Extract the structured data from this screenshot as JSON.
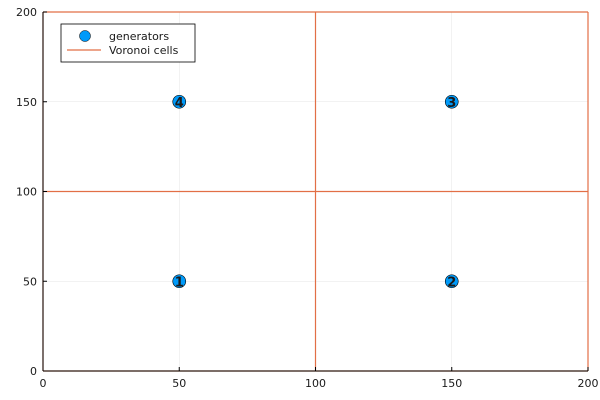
{
  "chart_data": {
    "type": "scatter",
    "title": "",
    "xlabel": "",
    "ylabel": "",
    "xlim": [
      0,
      200
    ],
    "ylim": [
      0,
      200
    ],
    "xticks": [
      0,
      50,
      100,
      150,
      200
    ],
    "yticks": [
      0,
      50,
      100,
      150,
      200
    ],
    "grid": true,
    "legend_position": "top-left",
    "series": [
      {
        "name": "generators",
        "kind": "scatter",
        "color": "#009af9",
        "points": [
          {
            "x": 50,
            "y": 50,
            "label": "1"
          },
          {
            "x": 150,
            "y": 50,
            "label": "2"
          },
          {
            "x": 150,
            "y": 150,
            "label": "3"
          },
          {
            "x": 50,
            "y": 150,
            "label": "4"
          }
        ]
      },
      {
        "name": "Voronoi cells",
        "kind": "line",
        "color": "#e26f46",
        "segments": [
          [
            [
              0,
              0
            ],
            [
              200,
              0
            ]
          ],
          [
            [
              0,
              0
            ],
            [
              0,
              200
            ]
          ],
          [
            [
              200,
              0
            ],
            [
              200,
              200
            ]
          ],
          [
            [
              0,
              200
            ],
            [
              200,
              200
            ]
          ],
          [
            [
              100,
              0
            ],
            [
              100,
              200
            ]
          ],
          [
            [
              0,
              100
            ],
            [
              200,
              100
            ]
          ]
        ]
      }
    ]
  }
}
